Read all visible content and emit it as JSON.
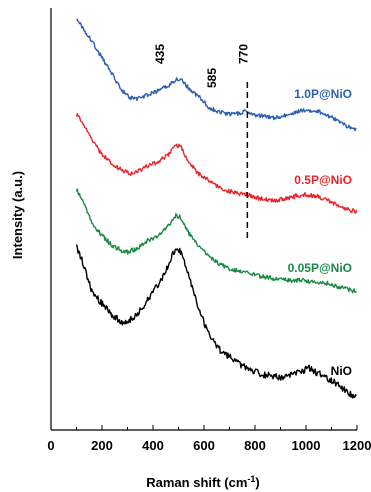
{
  "chart_data": {
    "type": "line",
    "xlabel": "Raman shift (cm",
    "xlabel_sup": "-1",
    "xlabel_tail": ")",
    "ylabel": "Intensity (a.u.)",
    "xlim": [
      0,
      1200
    ],
    "x_ticks": [
      "0",
      "200",
      "400",
      "600",
      "800",
      "1000",
      "1200"
    ],
    "grid": false,
    "series": [
      {
        "name": "1.0P@NiO",
        "color": "#2b5fb4",
        "offset": 3,
        "points": [
          [
            100,
            1.0
          ],
          [
            130,
            0.92
          ],
          [
            160,
            0.82
          ],
          [
            200,
            0.68
          ],
          [
            240,
            0.54
          ],
          [
            280,
            0.4
          ],
          [
            310,
            0.34
          ],
          [
            340,
            0.33
          ],
          [
            370,
            0.36
          ],
          [
            400,
            0.38
          ],
          [
            435,
            0.42
          ],
          [
            460,
            0.44
          ],
          [
            490,
            0.5
          ],
          [
            510,
            0.5
          ],
          [
            540,
            0.42
          ],
          [
            585,
            0.34
          ],
          [
            620,
            0.26
          ],
          [
            660,
            0.22
          ],
          [
            700,
            0.2
          ],
          [
            740,
            0.21
          ],
          [
            770,
            0.23
          ],
          [
            800,
            0.2
          ],
          [
            840,
            0.18
          ],
          [
            880,
            0.17
          ],
          [
            920,
            0.19
          ],
          [
            960,
            0.22
          ],
          [
            1000,
            0.24
          ],
          [
            1040,
            0.23
          ],
          [
            1080,
            0.2
          ],
          [
            1120,
            0.15
          ],
          [
            1160,
            0.1
          ],
          [
            1200,
            0.07
          ]
        ]
      },
      {
        "name": "0.5P@NiO",
        "color": "#e8262b",
        "offset": 2,
        "points": [
          [
            100,
            0.85
          ],
          [
            130,
            0.76
          ],
          [
            160,
            0.64
          ],
          [
            200,
            0.52
          ],
          [
            240,
            0.44
          ],
          [
            280,
            0.39
          ],
          [
            310,
            0.36
          ],
          [
            340,
            0.38
          ],
          [
            380,
            0.43
          ],
          [
            420,
            0.46
          ],
          [
            460,
            0.52
          ],
          [
            490,
            0.6
          ],
          [
            510,
            0.58
          ],
          [
            540,
            0.46
          ],
          [
            580,
            0.36
          ],
          [
            620,
            0.3
          ],
          [
            660,
            0.25
          ],
          [
            700,
            0.22
          ],
          [
            740,
            0.2
          ],
          [
            770,
            0.19
          ],
          [
            800,
            0.17
          ],
          [
            840,
            0.15
          ],
          [
            880,
            0.14
          ],
          [
            920,
            0.16
          ],
          [
            960,
            0.18
          ],
          [
            1000,
            0.19
          ],
          [
            1040,
            0.18
          ],
          [
            1080,
            0.15
          ],
          [
            1120,
            0.11
          ],
          [
            1160,
            0.07
          ],
          [
            1200,
            0.05
          ]
        ]
      },
      {
        "name": "0.05P@NiO",
        "color": "#1a8a45",
        "offset": 1,
        "points": [
          [
            100,
            0.88
          ],
          [
            130,
            0.76
          ],
          [
            160,
            0.62
          ],
          [
            200,
            0.52
          ],
          [
            240,
            0.44
          ],
          [
            280,
            0.4
          ],
          [
            300,
            0.39
          ],
          [
            340,
            0.42
          ],
          [
            380,
            0.48
          ],
          [
            420,
            0.52
          ],
          [
            460,
            0.6
          ],
          [
            490,
            0.68
          ],
          [
            510,
            0.66
          ],
          [
            540,
            0.54
          ],
          [
            580,
            0.44
          ],
          [
            620,
            0.36
          ],
          [
            660,
            0.3
          ],
          [
            700,
            0.26
          ],
          [
            740,
            0.24
          ],
          [
            780,
            0.22
          ],
          [
            820,
            0.2
          ],
          [
            860,
            0.19
          ],
          [
            900,
            0.18
          ],
          [
            940,
            0.17
          ],
          [
            980,
            0.17
          ],
          [
            1020,
            0.16
          ],
          [
            1060,
            0.15
          ],
          [
            1100,
            0.14
          ],
          [
            1140,
            0.11
          ],
          [
            1180,
            0.09
          ],
          [
            1200,
            0.08
          ]
        ]
      },
      {
        "name": "NiO",
        "color": "#000000",
        "offset": 0,
        "points": [
          [
            100,
            0.86
          ],
          [
            130,
            0.76
          ],
          [
            160,
            0.62
          ],
          [
            200,
            0.56
          ],
          [
            240,
            0.5
          ],
          [
            280,
            0.46
          ],
          [
            320,
            0.48
          ],
          [
            360,
            0.54
          ],
          [
            400,
            0.62
          ],
          [
            440,
            0.7
          ],
          [
            470,
            0.8
          ],
          [
            495,
            0.86
          ],
          [
            520,
            0.8
          ],
          [
            550,
            0.66
          ],
          [
            580,
            0.52
          ],
          [
            620,
            0.4
          ],
          [
            660,
            0.32
          ],
          [
            700,
            0.28
          ],
          [
            740,
            0.24
          ],
          [
            780,
            0.21
          ],
          [
            820,
            0.19
          ],
          [
            860,
            0.18
          ],
          [
            900,
            0.17
          ],
          [
            940,
            0.18
          ],
          [
            980,
            0.2
          ],
          [
            1010,
            0.22
          ],
          [
            1040,
            0.2
          ],
          [
            1080,
            0.17
          ],
          [
            1120,
            0.14
          ],
          [
            1160,
            0.1
          ],
          [
            1200,
            0.06
          ]
        ]
      }
    ],
    "annotations": [
      {
        "label": "435",
        "x": 435
      },
      {
        "label": "585",
        "x": 585
      },
      {
        "label": "770",
        "x": 770
      }
    ],
    "dashed_marker_x": 770
  }
}
